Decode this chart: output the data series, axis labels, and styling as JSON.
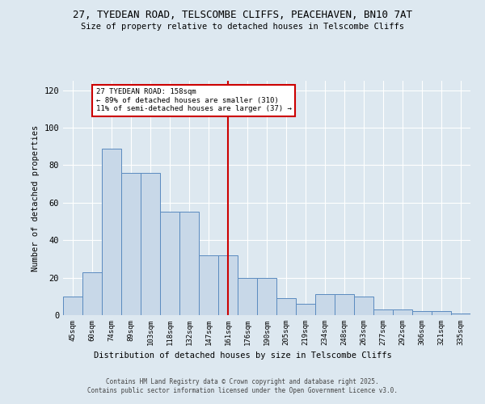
{
  "title1": "27, TYEDEAN ROAD, TELSCOMBE CLIFFS, PEACEHAVEN, BN10 7AT",
  "title2": "Size of property relative to detached houses in Telscombe Cliffs",
  "xlabel": "Distribution of detached houses by size in Telscombe Cliffs",
  "ylabel": "Number of detached properties",
  "categories": [
    "45sqm",
    "60sqm",
    "74sqm",
    "89sqm",
    "103sqm",
    "118sqm",
    "132sqm",
    "147sqm",
    "161sqm",
    "176sqm",
    "190sqm",
    "205sqm",
    "219sqm",
    "234sqm",
    "248sqm",
    "263sqm",
    "277sqm",
    "292sqm",
    "306sqm",
    "321sqm",
    "335sqm"
  ],
  "values": [
    10,
    23,
    89,
    76,
    76,
    55,
    55,
    32,
    32,
    20,
    20,
    9,
    6,
    11,
    11,
    10,
    3,
    3,
    2,
    2,
    1
  ],
  "bar_color": "#c8d8e8",
  "bar_edge_color": "#5a8abf",
  "vline_x": 8.0,
  "vline_color": "#cc0000",
  "annotation_title": "27 TYEDEAN ROAD: 158sqm",
  "annotation_line1": "← 89% of detached houses are smaller (310)",
  "annotation_line2": "11% of semi-detached houses are larger (37) →",
  "annotation_box_color": "#ffffff",
  "annotation_box_edge": "#cc0000",
  "ylim": [
    0,
    125
  ],
  "yticks": [
    0,
    20,
    40,
    60,
    80,
    100,
    120
  ],
  "background_color": "#dde8f0",
  "footer1": "Contains HM Land Registry data © Crown copyright and database right 2025.",
  "footer2": "Contains public sector information licensed under the Open Government Licence v3.0."
}
